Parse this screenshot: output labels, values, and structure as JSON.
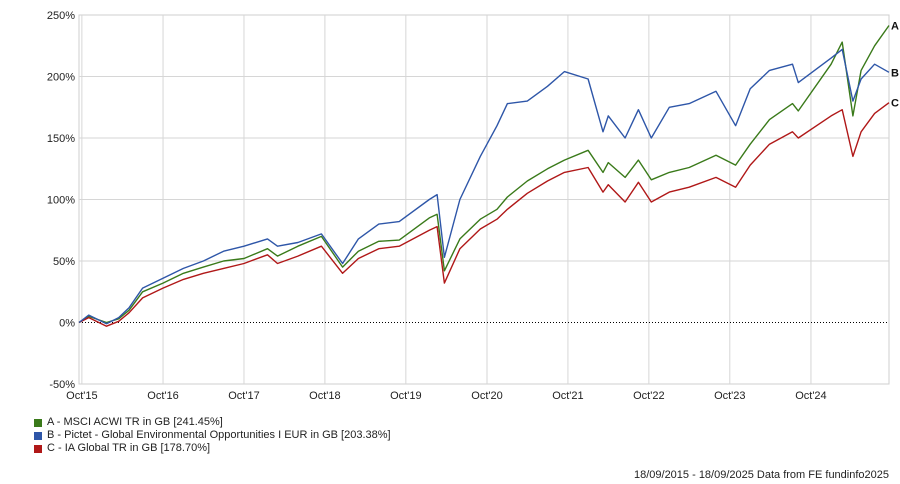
{
  "chart_data": {
    "type": "line",
    "ylim": [
      -50,
      250
    ],
    "y_ticks": [
      -50,
      0,
      50,
      100,
      150,
      200,
      250
    ],
    "y_tick_labels": [
      "-50%",
      "0%",
      "50%",
      "100%",
      "150%",
      "200%",
      "250%"
    ],
    "x_range": [
      "2015-09-18",
      "2025-09-18"
    ],
    "x_ticks": [
      "2015-10-01",
      "2016-10-01",
      "2017-10-01",
      "2018-10-01",
      "2019-10-01",
      "2020-10-01",
      "2021-10-01",
      "2022-10-01",
      "2023-10-01",
      "2024-10-01"
    ],
    "x_tick_labels": [
      "Oct'15",
      "Oct'16",
      "Oct'17",
      "Oct'18",
      "Oct'19",
      "Oct'20",
      "Oct'21",
      "Oct'22",
      "Oct'23",
      "Oct'24"
    ],
    "grid": true,
    "series": [
      {
        "name": "A - MSCI ACWI TR in GB [241.45%]",
        "end_label": "A",
        "color": "#3a7a1a",
        "points": [
          [
            "2015-09-18",
            0
          ],
          [
            "2015-11-01",
            5
          ],
          [
            "2016-01-20",
            0
          ],
          [
            "2016-03-15",
            3
          ],
          [
            "2016-05-01",
            10
          ],
          [
            "2016-07-01",
            25
          ],
          [
            "2016-10-01",
            32
          ],
          [
            "2017-01-01",
            40
          ],
          [
            "2017-04-01",
            45
          ],
          [
            "2017-07-01",
            50
          ],
          [
            "2017-10-01",
            52
          ],
          [
            "2018-01-15",
            60
          ],
          [
            "2018-03-01",
            54
          ],
          [
            "2018-06-01",
            62
          ],
          [
            "2018-09-15",
            70
          ],
          [
            "2018-12-20",
            45
          ],
          [
            "2019-03-01",
            58
          ],
          [
            "2019-06-01",
            66
          ],
          [
            "2019-09-01",
            67
          ],
          [
            "2020-01-15",
            85
          ],
          [
            "2020-02-19",
            88
          ],
          [
            "2020-03-23",
            42
          ],
          [
            "2020-06-01",
            68
          ],
          [
            "2020-09-01",
            84
          ],
          [
            "2020-11-15",
            92
          ],
          [
            "2021-01-01",
            102
          ],
          [
            "2021-04-01",
            115
          ],
          [
            "2021-07-01",
            125
          ],
          [
            "2021-09-15",
            132
          ],
          [
            "2021-12-31",
            140
          ],
          [
            "2022-03-08",
            122
          ],
          [
            "2022-04-01",
            130
          ],
          [
            "2022-06-16",
            118
          ],
          [
            "2022-08-15",
            132
          ],
          [
            "2022-10-12",
            116
          ],
          [
            "2023-01-01",
            122
          ],
          [
            "2023-04-01",
            126
          ],
          [
            "2023-07-31",
            136
          ],
          [
            "2023-10-27",
            128
          ],
          [
            "2024-01-01",
            145
          ],
          [
            "2024-03-28",
            165
          ],
          [
            "2024-07-10",
            178
          ],
          [
            "2024-08-05",
            172
          ],
          [
            "2024-12-31",
            210
          ],
          [
            "2025-02-19",
            228
          ],
          [
            "2025-04-08",
            168
          ],
          [
            "2025-05-15",
            205
          ],
          [
            "2025-07-15",
            225
          ],
          [
            "2025-09-18",
            241.45
          ]
        ]
      },
      {
        "name": "B - Pictet - Global Environmental Opportunities I EUR in GB [203.38%]",
        "end_label": "B",
        "color": "#2e56a8",
        "points": [
          [
            "2015-09-18",
            0
          ],
          [
            "2015-11-01",
            6
          ],
          [
            "2016-01-20",
            -1
          ],
          [
            "2016-03-15",
            4
          ],
          [
            "2016-05-01",
            12
          ],
          [
            "2016-07-01",
            28
          ],
          [
            "2016-10-01",
            36
          ],
          [
            "2017-01-01",
            44
          ],
          [
            "2017-04-01",
            50
          ],
          [
            "2017-07-01",
            58
          ],
          [
            "2017-10-01",
            62
          ],
          [
            "2018-01-15",
            68
          ],
          [
            "2018-03-01",
            62
          ],
          [
            "2018-06-01",
            65
          ],
          [
            "2018-09-15",
            72
          ],
          [
            "2018-12-20",
            48
          ],
          [
            "2019-03-01",
            68
          ],
          [
            "2019-06-01",
            80
          ],
          [
            "2019-09-01",
            82
          ],
          [
            "2020-01-15",
            100
          ],
          [
            "2020-02-19",
            104
          ],
          [
            "2020-03-23",
            53
          ],
          [
            "2020-06-01",
            100
          ],
          [
            "2020-09-01",
            135
          ],
          [
            "2020-11-15",
            160
          ],
          [
            "2021-01-01",
            178
          ],
          [
            "2021-04-01",
            180
          ],
          [
            "2021-07-01",
            192
          ],
          [
            "2021-09-15",
            204
          ],
          [
            "2021-12-31",
            198
          ],
          [
            "2022-03-08",
            155
          ],
          [
            "2022-04-01",
            168
          ],
          [
            "2022-06-16",
            150
          ],
          [
            "2022-08-15",
            173
          ],
          [
            "2022-10-12",
            150
          ],
          [
            "2023-01-01",
            175
          ],
          [
            "2023-04-01",
            178
          ],
          [
            "2023-07-31",
            188
          ],
          [
            "2023-10-27",
            160
          ],
          [
            "2024-01-01",
            190
          ],
          [
            "2024-03-28",
            205
          ],
          [
            "2024-07-10",
            210
          ],
          [
            "2024-08-05",
            195
          ],
          [
            "2024-12-31",
            215
          ],
          [
            "2025-02-19",
            222
          ],
          [
            "2025-04-08",
            180
          ],
          [
            "2025-05-15",
            198
          ],
          [
            "2025-07-15",
            210
          ],
          [
            "2025-09-18",
            203.38
          ]
        ]
      },
      {
        "name": "C - IA Global TR in GB [178.70%]",
        "end_label": "C",
        "color": "#b01818",
        "points": [
          [
            "2015-09-18",
            0
          ],
          [
            "2015-11-01",
            4
          ],
          [
            "2016-01-20",
            -3
          ],
          [
            "2016-03-15",
            1
          ],
          [
            "2016-05-01",
            8
          ],
          [
            "2016-07-01",
            20
          ],
          [
            "2016-10-01",
            28
          ],
          [
            "2017-01-01",
            35
          ],
          [
            "2017-04-01",
            40
          ],
          [
            "2017-07-01",
            44
          ],
          [
            "2017-10-01",
            48
          ],
          [
            "2018-01-15",
            55
          ],
          [
            "2018-03-01",
            48
          ],
          [
            "2018-06-01",
            54
          ],
          [
            "2018-09-15",
            62
          ],
          [
            "2018-12-20",
            40
          ],
          [
            "2019-03-01",
            52
          ],
          [
            "2019-06-01",
            60
          ],
          [
            "2019-09-01",
            62
          ],
          [
            "2020-01-15",
            75
          ],
          [
            "2020-02-19",
            78
          ],
          [
            "2020-03-23",
            32
          ],
          [
            "2020-06-01",
            60
          ],
          [
            "2020-09-01",
            76
          ],
          [
            "2020-11-15",
            84
          ],
          [
            "2021-01-01",
            92
          ],
          [
            "2021-04-01",
            105
          ],
          [
            "2021-07-01",
            115
          ],
          [
            "2021-09-15",
            122
          ],
          [
            "2021-12-31",
            126
          ],
          [
            "2022-03-08",
            106
          ],
          [
            "2022-04-01",
            112
          ],
          [
            "2022-06-16",
            98
          ],
          [
            "2022-08-15",
            114
          ],
          [
            "2022-10-12",
            98
          ],
          [
            "2023-01-01",
            106
          ],
          [
            "2023-04-01",
            110
          ],
          [
            "2023-07-31",
            118
          ],
          [
            "2023-10-27",
            110
          ],
          [
            "2024-01-01",
            128
          ],
          [
            "2024-03-28",
            145
          ],
          [
            "2024-07-10",
            155
          ],
          [
            "2024-08-05",
            150
          ],
          [
            "2024-12-31",
            168
          ],
          [
            "2025-02-19",
            173
          ],
          [
            "2025-04-08",
            135
          ],
          [
            "2025-05-15",
            155
          ],
          [
            "2025-07-15",
            170
          ],
          [
            "2025-09-18",
            178.7
          ]
        ]
      }
    ]
  },
  "legend": {
    "items": [
      {
        "label": "A - MSCI ACWI TR in GB [241.45%]",
        "color": "#3a7a1a"
      },
      {
        "label": "B - Pictet - Global Environmental Opportunities I EUR in GB [203.38%]",
        "color": "#2e56a8"
      },
      {
        "label": "C - IA Global TR in GB [178.70%]",
        "color": "#b01818"
      }
    ]
  },
  "footer": {
    "text": "18/09/2015 - 18/09/2025 Data from FE fundinfo2025"
  }
}
